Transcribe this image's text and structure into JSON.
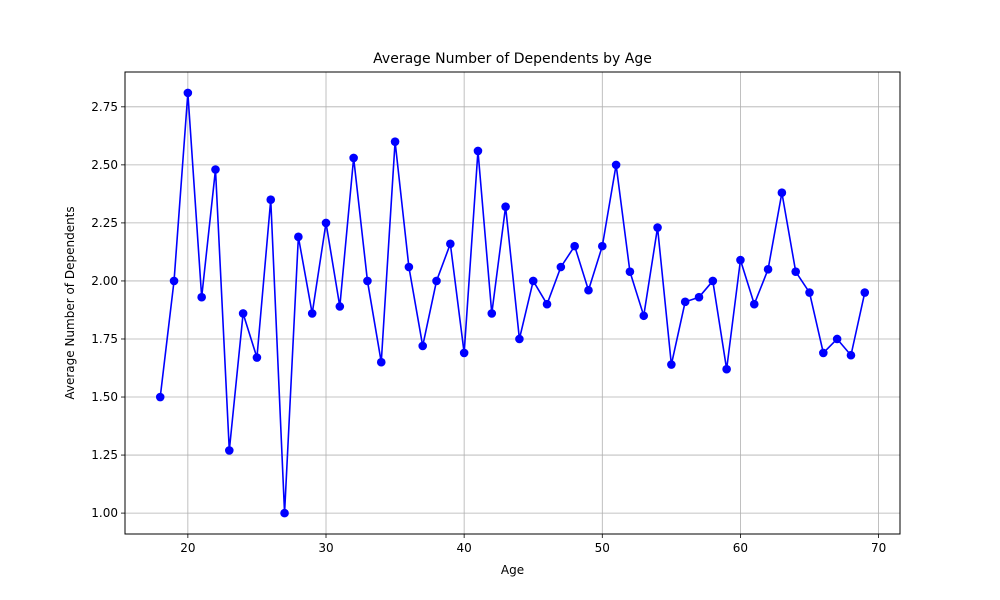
{
  "chart_data": {
    "type": "line",
    "title": "Average Number of Dependents by Age",
    "xlabel": "Age",
    "ylabel": "Average Number of Dependents",
    "xlim": [
      15.45,
      71.55
    ],
    "ylim": [
      0.91,
      2.9
    ],
    "xticks": [
      20,
      30,
      40,
      50,
      60,
      70
    ],
    "yticks": [
      1.0,
      1.25,
      1.5,
      1.75,
      2.0,
      2.25,
      2.5,
      2.75
    ],
    "grid": true,
    "series": [
      {
        "color": "#0000ff",
        "marker": "circle",
        "x": [
          18,
          19,
          20,
          21,
          22,
          23,
          24,
          25,
          26,
          27,
          28,
          29,
          30,
          31,
          32,
          33,
          34,
          35,
          36,
          37,
          38,
          39,
          40,
          41,
          42,
          43,
          44,
          45,
          46,
          47,
          48,
          49,
          50,
          51,
          52,
          53,
          54,
          55,
          56,
          57,
          58,
          59,
          60,
          61,
          62,
          63,
          64,
          65,
          66,
          67,
          68,
          69
        ],
        "y": [
          1.5,
          2.0,
          2.81,
          1.93,
          2.48,
          1.27,
          1.86,
          1.67,
          2.35,
          1.0,
          2.19,
          1.86,
          2.25,
          1.89,
          2.53,
          2.0,
          1.65,
          2.6,
          2.06,
          1.72,
          2.0,
          2.16,
          1.69,
          2.56,
          1.86,
          2.32,
          1.75,
          2.0,
          1.9,
          2.06,
          2.15,
          1.96,
          2.15,
          2.5,
          2.04,
          1.85,
          2.23,
          1.64,
          1.91,
          1.93,
          2.0,
          1.62,
          2.09,
          1.9,
          2.05,
          2.38,
          2.04,
          1.95,
          1.69,
          1.75,
          1.68,
          1.95
        ]
      }
    ]
  }
}
